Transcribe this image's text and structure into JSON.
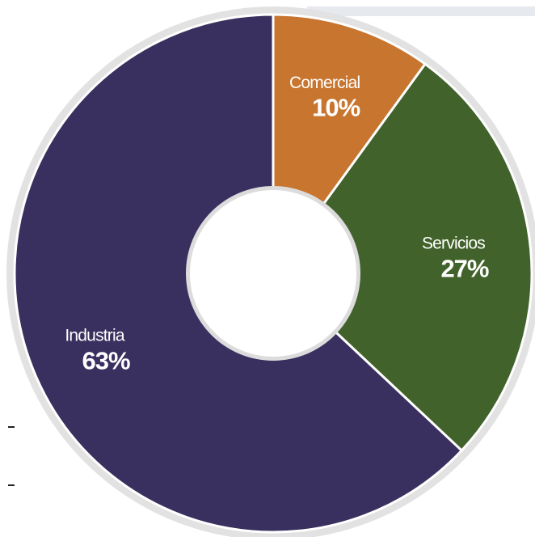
{
  "chart_data": {
    "type": "donut",
    "categories": [
      "Comercial",
      "Servicios",
      "Industria"
    ],
    "values": [
      10,
      27,
      63
    ],
    "value_labels": [
      "10%",
      "27%",
      "63%"
    ],
    "colors": [
      "#c8752f",
      "#41622b",
      "#3a305f"
    ]
  }
}
